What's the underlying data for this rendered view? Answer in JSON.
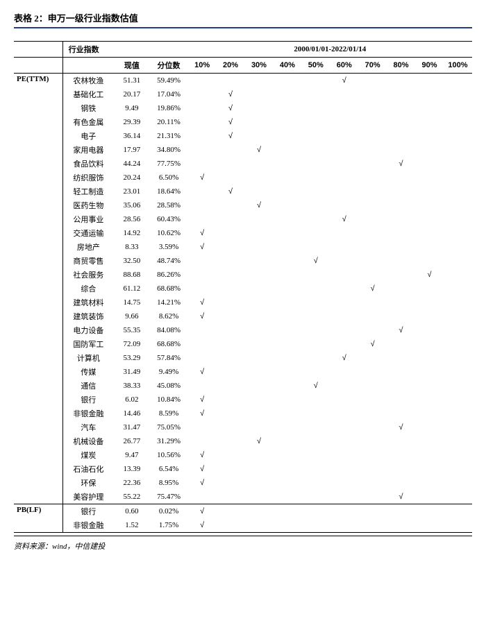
{
  "title": "表格 2：申万一级行业指数估值",
  "header": {
    "group_left": "行业指数",
    "group_right": "2000/01/01-2022/01/14",
    "col_value": "现值",
    "col_percentile": "分位数",
    "deciles": [
      "10%",
      "20%",
      "30%",
      "40%",
      "50%",
      "60%",
      "70%",
      "80%",
      "90%",
      "100%"
    ]
  },
  "check": "√",
  "sections": [
    {
      "metric": "PE(TTM)",
      "rows": [
        {
          "name": "农林牧渔",
          "val": "51.31",
          "pct": "59.49%",
          "bucket": 6
        },
        {
          "name": "基础化工",
          "val": "20.17",
          "pct": "17.04%",
          "bucket": 2
        },
        {
          "name": "钢铁",
          "val": "9.49",
          "pct": "19.86%",
          "bucket": 2
        },
        {
          "name": "有色金属",
          "val": "29.39",
          "pct": "20.11%",
          "bucket": 2
        },
        {
          "name": "电子",
          "val": "36.14",
          "pct": "21.31%",
          "bucket": 2
        },
        {
          "name": "家用电器",
          "val": "17.97",
          "pct": "34.80%",
          "bucket": 3
        },
        {
          "name": "食品饮料",
          "val": "44.24",
          "pct": "77.75%",
          "bucket": 8
        },
        {
          "name": "纺织服饰",
          "val": "20.24",
          "pct": "6.50%",
          "bucket": 1
        },
        {
          "name": "轻工制造",
          "val": "23.01",
          "pct": "18.64%",
          "bucket": 2
        },
        {
          "name": "医药生物",
          "val": "35.06",
          "pct": "28.58%",
          "bucket": 3
        },
        {
          "name": "公用事业",
          "val": "28.56",
          "pct": "60.43%",
          "bucket": 6
        },
        {
          "name": "交通运输",
          "val": "14.92",
          "pct": "10.62%",
          "bucket": 1
        },
        {
          "name": "房地产",
          "val": "8.33",
          "pct": "3.59%",
          "bucket": 1
        },
        {
          "name": "商贸零售",
          "val": "32.50",
          "pct": "48.74%",
          "bucket": 5
        },
        {
          "name": "社会服务",
          "val": "88.68",
          "pct": "86.26%",
          "bucket": 9
        },
        {
          "name": "综合",
          "val": "61.12",
          "pct": "68.68%",
          "bucket": 7
        },
        {
          "name": "建筑材料",
          "val": "14.75",
          "pct": "14.21%",
          "bucket": 1
        },
        {
          "name": "建筑装饰",
          "val": "9.66",
          "pct": "8.62%",
          "bucket": 1
        },
        {
          "name": "电力设备",
          "val": "55.35",
          "pct": "84.08%",
          "bucket": 8
        },
        {
          "name": "国防军工",
          "val": "72.09",
          "pct": "68.68%",
          "bucket": 7
        },
        {
          "name": "计算机",
          "val": "53.29",
          "pct": "57.84%",
          "bucket": 6
        },
        {
          "name": "传媒",
          "val": "31.49",
          "pct": "9.49%",
          "bucket": 1
        },
        {
          "name": "通信",
          "val": "38.33",
          "pct": "45.08%",
          "bucket": 5
        },
        {
          "name": "银行",
          "val": "6.02",
          "pct": "10.84%",
          "bucket": 1
        },
        {
          "name": "非银金融",
          "val": "14.46",
          "pct": "8.59%",
          "bucket": 1
        },
        {
          "name": "汽车",
          "val": "31.47",
          "pct": "75.05%",
          "bucket": 8
        },
        {
          "name": "机械设备",
          "val": "26.77",
          "pct": "31.29%",
          "bucket": 3
        },
        {
          "name": "煤炭",
          "val": "9.47",
          "pct": "10.56%",
          "bucket": 1
        },
        {
          "name": "石油石化",
          "val": "13.39",
          "pct": "6.54%",
          "bucket": 1
        },
        {
          "name": "环保",
          "val": "22.36",
          "pct": "8.95%",
          "bucket": 1
        },
        {
          "name": "美容护理",
          "val": "55.22",
          "pct": "75.47%",
          "bucket": 8
        }
      ]
    },
    {
      "metric": "PB(LF)",
      "rows": [
        {
          "name": "银行",
          "val": "0.60",
          "pct": "0.02%",
          "bucket": 1
        },
        {
          "name": "非银金融",
          "val": "1.52",
          "pct": "1.75%",
          "bucket": 1
        }
      ]
    }
  ],
  "source": "资料来源：wind，中信建投"
}
